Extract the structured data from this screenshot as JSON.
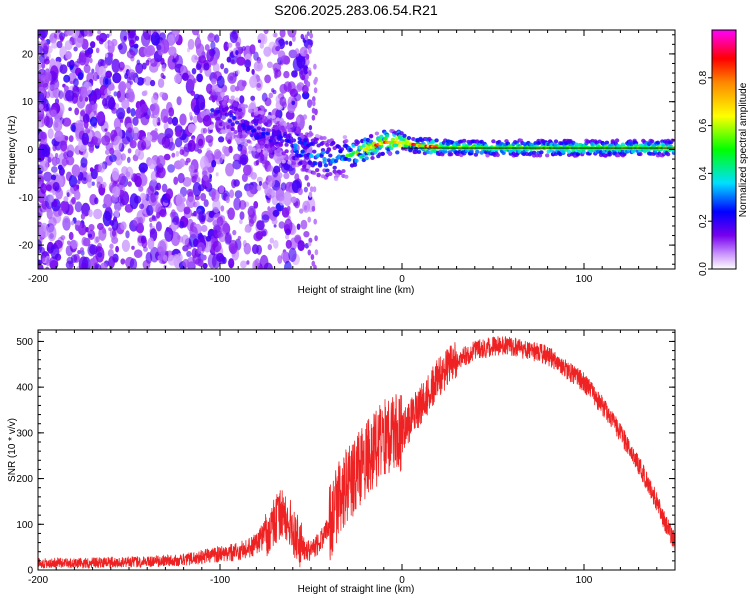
{
  "title": "S206.2025.283.06.54.R21",
  "colors": {
    "snr_line": "#ee2222",
    "axis": "#000000",
    "centerline": "#000000"
  },
  "chart_data": [
    {
      "type": "heatmap",
      "xlabel": "Height of straight line (km)",
      "ylabel": "Frequency (Hz)",
      "xlim": [
        -200,
        150
      ],
      "ylim": [
        -25,
        25
      ],
      "xticks": [
        -200,
        -100,
        0,
        100
      ],
      "xtick_labels": [
        "-200",
        "-100",
        "0",
        "100"
      ],
      "yticks": [
        -20,
        -10,
        0,
        10,
        20
      ],
      "ytick_labels": [
        "-20",
        "-10",
        "0",
        "10",
        "20"
      ],
      "colorbar": {
        "label": "Normalized spectral amplitude",
        "range": [
          0,
          1
        ],
        "ticks": [
          0.0,
          0.2,
          0.4,
          0.6,
          0.8
        ],
        "tick_labels": [
          "0.0",
          "0.2",
          "0.4",
          "0.6",
          "0.8"
        ]
      },
      "signal_band": [
        {
          "x": -100,
          "y": 8
        },
        {
          "x": -90,
          "y": 6
        },
        {
          "x": -80,
          "y": 4
        },
        {
          "x": -70,
          "y": 2.5
        },
        {
          "x": -60,
          "y": 1
        },
        {
          "x": -50,
          "y": -1
        },
        {
          "x": -40,
          "y": -2
        },
        {
          "x": -30,
          "y": -1.5
        },
        {
          "x": -20,
          "y": 0
        },
        {
          "x": -10,
          "y": 1.5
        },
        {
          "x": 0,
          "y": 1.5
        },
        {
          "x": 10,
          "y": 0.8
        },
        {
          "x": 20,
          "y": 0.5
        },
        {
          "x": 50,
          "y": 0.3
        },
        {
          "x": 100,
          "y": 0.3
        },
        {
          "x": 150,
          "y": 0.3
        }
      ]
    },
    {
      "type": "line",
      "xlabel": "Height of straight line (km)",
      "ylabel": "SNR (10 * v/v)",
      "xlim": [
        -200,
        150
      ],
      "ylim": [
        0,
        525
      ],
      "xticks": [
        -200,
        -100,
        0,
        100
      ],
      "xtick_labels": [
        "-200",
        "-100",
        "0",
        "100"
      ],
      "yticks": [
        0,
        100,
        200,
        300,
        400,
        500
      ],
      "ytick_labels": [
        "0",
        "100",
        "200",
        "300",
        "400",
        "500"
      ],
      "series": [
        {
          "name": "SNR",
          "x": [
            -200,
            -180,
            -160,
            -140,
            -125,
            -115,
            -100,
            -90,
            -80,
            -75,
            -70,
            -65,
            -60,
            -55,
            -50,
            -45,
            -40,
            -35,
            -30,
            -25,
            -20,
            -15,
            -10,
            -5,
            0,
            5,
            10,
            15,
            20,
            25,
            30,
            40,
            50,
            60,
            70,
            80,
            90,
            100,
            110,
            120,
            130,
            140,
            145,
            150
          ],
          "y": [
            15,
            15,
            17,
            18,
            20,
            25,
            35,
            40,
            55,
            80,
            110,
            130,
            90,
            50,
            40,
            60,
            100,
            150,
            190,
            210,
            240,
            260,
            290,
            300,
            300,
            330,
            360,
            390,
            420,
            440,
            460,
            480,
            490,
            490,
            480,
            470,
            440,
            410,
            360,
            300,
            230,
            150,
            100,
            60
          ]
        }
      ]
    }
  ]
}
